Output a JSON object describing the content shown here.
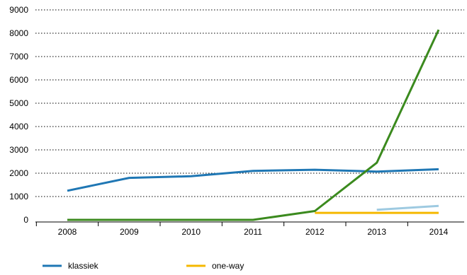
{
  "chart_data": {
    "type": "line",
    "title": "",
    "xlabel": "",
    "ylabel": "",
    "x": [
      "2008",
      "2009",
      "2010",
      "2011",
      "2012",
      "2013",
      "2014"
    ],
    "ylim": [
      0,
      9000
    ],
    "yticks": [
      0,
      1000,
      2000,
      3000,
      4000,
      5000,
      6000,
      7000,
      8000,
      9000
    ],
    "grid": "horizontal dotted",
    "legend_position": "bottom",
    "series": [
      {
        "name": "klassiek",
        "color": "#1f77b4",
        "values": [
          1250,
          1800,
          1870,
          2100,
          2150,
          2070,
          2170
        ]
      },
      {
        "name": "one-way",
        "color": "#f5b800",
        "values": [
          null,
          null,
          null,
          null,
          300,
          300,
          300
        ]
      },
      {
        "name": "",
        "color": "#3b8a1e",
        "values": [
          0,
          0,
          0,
          0,
          380,
          2450,
          8150
        ]
      },
      {
        "name": "",
        "color": "#9ecae1",
        "values": [
          null,
          null,
          null,
          null,
          null,
          430,
          600
        ]
      }
    ]
  }
}
